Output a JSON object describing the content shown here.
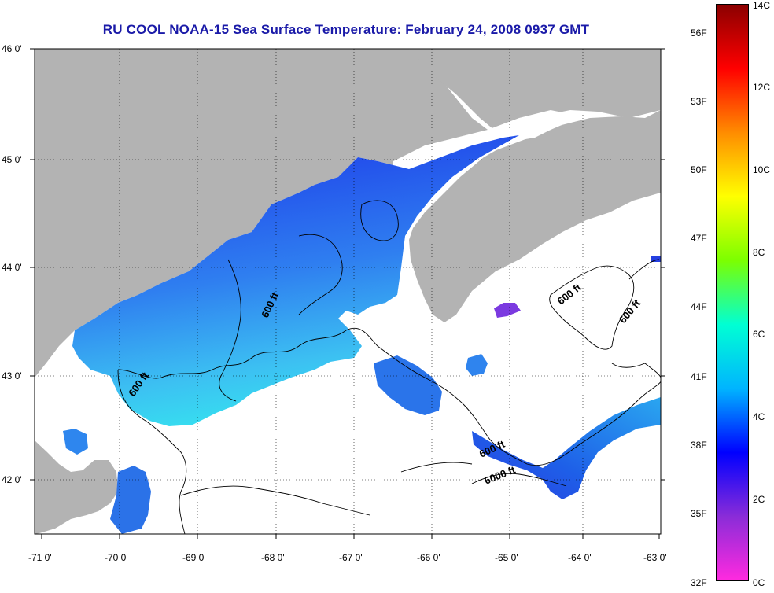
{
  "title": "RU COOL  NOAA-15  Sea Surface Temperature:  February 24, 2008 0937 GMT",
  "map": {
    "lat_labels": [
      "46 0'",
      "45 0'",
      "44 0'",
      "43 0'",
      "42 0'"
    ],
    "lon_labels": [
      "-71 0'",
      "-70 0'",
      "-69 0'",
      "-68 0'",
      "-67 0'",
      "-66 0'",
      "-65 0'",
      "-64 0'",
      "-63 0'"
    ],
    "lat_range": [
      41.5,
      46.0
    ],
    "lon_range": [
      -71.0,
      -63.0
    ],
    "contour_labels": [
      "600 ft",
      "600 ft",
      "600 ft",
      "600 ft",
      "6000 ft",
      "600 ft"
    ],
    "colors": {
      "land": "#b3b3b3",
      "no_data": "#ffffff",
      "water_cold": "#1e40f0",
      "water_mid": "#2e7fe0",
      "water_warm": "#2fd0f0"
    }
  },
  "colorbar": {
    "fahrenheit_labels": [
      "56F",
      "53F",
      "50F",
      "47F",
      "44F",
      "41F",
      "38F",
      "35F",
      "32F"
    ],
    "celsius_labels": [
      "14C",
      "12C",
      "10C",
      "8C",
      "6C",
      "4C",
      "2C",
      "0C"
    ],
    "range_c": [
      0,
      14
    ],
    "colors": [
      "#ff2adf",
      "#8a2cd8",
      "#0000ff",
      "#00b4ff",
      "#00ffd4",
      "#7cff00",
      "#ffff00",
      "#ff8c00",
      "#ff0000",
      "#8b0000"
    ]
  }
}
